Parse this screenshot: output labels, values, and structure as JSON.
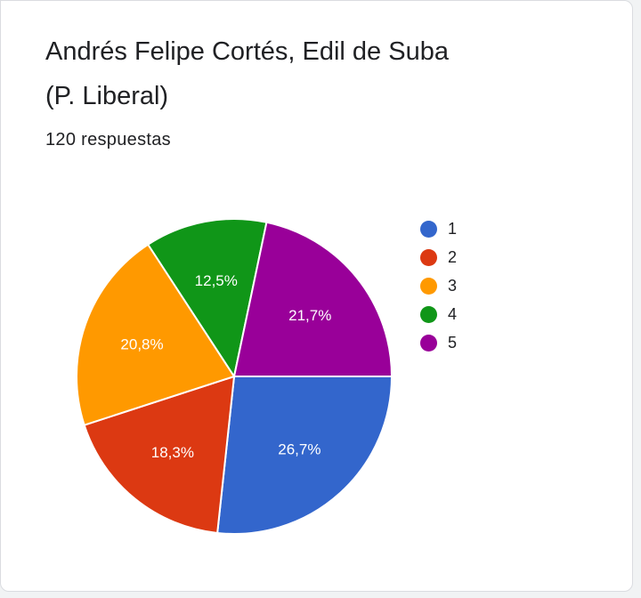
{
  "question": {
    "title_line1": "Andrés Felipe Cortés, Edil de Suba",
    "title_line2": "(P. Liberal)",
    "responses": "120 respuestas"
  },
  "chart_data": {
    "type": "pie",
    "legend_position": "right",
    "categories": [
      "1",
      "2",
      "3",
      "4",
      "5"
    ],
    "values": [
      26.7,
      18.3,
      20.8,
      12.5,
      21.7
    ],
    "labels": [
      "26,7%",
      "18,3%",
      "20,8%",
      "12,5%",
      "21,7%"
    ],
    "colors": [
      "#3366cc",
      "#dc3912",
      "#ff9900",
      "#109618",
      "#990099"
    ]
  }
}
